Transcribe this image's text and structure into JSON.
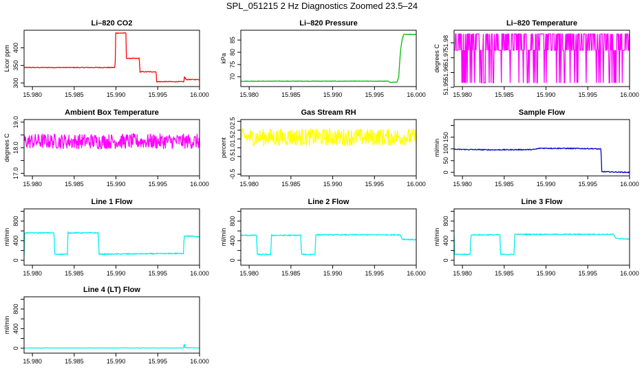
{
  "title": "SPL_051215  2 Hz Diagnostics Zoomed 23.5–24",
  "chart_data": [
    {
      "type": "line",
      "title": "Li–820 CO2",
      "ylabel": "Licor ppm",
      "color": "#ff0000",
      "xlim": [
        15.979,
        16.0
      ],
      "ylim": [
        290,
        450
      ],
      "xticks": [
        15.98,
        15.985,
        15.99,
        15.995,
        16.0
      ],
      "xticklabels": [
        "15.980",
        "15.985",
        "15.990",
        "15.995",
        "16.000"
      ],
      "yticks": [
        300,
        350,
        400
      ],
      "yticklabels": [
        "300",
        "350",
        "400"
      ],
      "noise": 1,
      "x": [
        15.979,
        15.9899,
        15.98995,
        15.9912,
        15.99125,
        15.9928,
        15.99285,
        15.9948,
        15.99485,
        15.99815,
        15.9982,
        15.9983,
        15.9985,
        16.0
      ],
      "y": [
        344,
        344,
        442,
        442,
        370,
        370,
        332,
        332,
        304,
        304,
        320,
        312,
        310,
        310
      ]
    },
    {
      "type": "line",
      "title": "Li–820 Pressure",
      "ylabel": "kPa",
      "color": "#00bb00",
      "xlim": [
        15.979,
        16.0
      ],
      "ylim": [
        66,
        89
      ],
      "xticks": [
        15.98,
        15.985,
        15.99,
        15.995,
        16.0
      ],
      "xticklabels": [
        "15.980",
        "15.985",
        "15.990",
        "15.995",
        "16.000"
      ],
      "yticks": [
        70,
        75,
        80,
        85
      ],
      "yticklabels": [
        "70",
        "75",
        "80",
        "85"
      ],
      "noise": 0.1,
      "x": [
        15.979,
        15.9967,
        15.99675,
        15.9977,
        15.9979,
        15.9981,
        15.9983,
        15.9985,
        16.0
      ],
      "y": [
        68.2,
        68.2,
        67.8,
        67.8,
        70,
        80,
        85,
        87.3,
        87.3
      ]
    },
    {
      "type": "line",
      "title": "Li–820 Temperature",
      "ylabel": "degrees C",
      "color": "#ff00ff",
      "xlim": [
        15.979,
        16.0
      ],
      "ylim": [
        51.9505,
        51.9885
      ],
      "xticks": [
        15.98,
        15.985,
        15.99,
        15.995,
        16.0
      ],
      "xticklabels": [
        "15.980",
        "15.985",
        "15.990",
        "15.995",
        "16.000"
      ],
      "yticks": [
        51.95,
        51.96,
        51.97,
        51.98
      ],
      "yticklabels": [
        "51.95",
        "51.96",
        "51.97",
        "51.98"
      ],
      "noise": 0,
      "x": [
        15.979,
        16.0
      ],
      "y": [
        51.986,
        51.986
      ],
      "levels": [
        51.953,
        51.975,
        51.986
      ]
    },
    {
      "type": "line",
      "title": "Ambient Box Temperature",
      "ylabel": "degrees C",
      "color": "#ff00ff",
      "xlim": [
        15.979,
        16.0
      ],
      "ylim": [
        16.9,
        19.1
      ],
      "xticks": [
        15.98,
        15.985,
        15.99,
        15.995,
        16.0
      ],
      "xticklabels": [
        "15.980",
        "15.985",
        "15.990",
        "15.995",
        "16.000"
      ],
      "yticks": [
        17.0,
        17.5,
        18.0,
        18.5,
        19.0
      ],
      "yticklabels": [
        "17.0",
        "",
        "18.0",
        "",
        "19.0"
      ],
      "noise": 0.3,
      "x": [
        15.979,
        16.0
      ],
      "y": [
        18.25,
        18.25
      ]
    },
    {
      "type": "line",
      "title": "Gas Stream RH",
      "ylabel": "percent",
      "color": "#ffff00",
      "xlim": [
        15.979,
        16.0
      ],
      "ylim": [
        -0.6,
        2.6
      ],
      "xticks": [
        15.98,
        15.985,
        15.99,
        15.995,
        16.0
      ],
      "xticklabels": [
        "15.980",
        "15.985",
        "15.990",
        "15.995",
        "16.000"
      ],
      "yticks": [
        -0.5,
        0.5,
        1.0,
        1.5,
        2.0,
        2.5
      ],
      "yticklabels": [
        "-0.5",
        "0.5",
        "1.0",
        "1.5",
        "2.0",
        "2.5"
      ],
      "noise": 0.5,
      "x": [
        15.979,
        16.0
      ],
      "y": [
        1.6,
        1.6
      ]
    },
    {
      "type": "line",
      "title": "Sample Flow",
      "ylabel": "ml/min",
      "color": "#0000cc",
      "xlim": [
        15.979,
        16.0
      ],
      "ylim": [
        -15,
        225
      ],
      "xticks": [
        15.98,
        15.985,
        15.99,
        15.995,
        16.0
      ],
      "xticklabels": [
        "15.980",
        "15.985",
        "15.990",
        "15.995",
        "16.000"
      ],
      "yticks": [
        0,
        50,
        100,
        150,
        200
      ],
      "yticklabels": [
        "0",
        "50",
        "100",
        "150",
        ""
      ],
      "noise": 2,
      "x": [
        15.979,
        15.9835,
        15.9885,
        15.9893,
        15.9955,
        15.9966,
        15.99665,
        16.0
      ],
      "y": [
        98,
        96,
        97,
        103,
        101,
        99,
        3,
        0
      ]
    },
    {
      "type": "line",
      "title": "Line 1 Flow",
      "ylabel": "ml/min",
      "color": "#00eeee",
      "xlim": [
        15.979,
        16.0
      ],
      "ylim": [
        -100,
        1050
      ],
      "xticks": [
        15.98,
        15.985,
        15.99,
        15.995,
        16.0
      ],
      "xticklabels": [
        "15.980",
        "15.985",
        "15.990",
        "15.995",
        "16.000"
      ],
      "yticks": [
        0,
        200,
        400,
        600,
        800,
        1000
      ],
      "yticklabels": [
        "0",
        "",
        "400",
        "",
        "800",
        ""
      ],
      "noise": 10,
      "x": [
        15.979,
        15.97902,
        15.9826,
        15.98265,
        15.9842,
        15.98425,
        15.9879,
        15.98795,
        15.9981,
        15.99815,
        16.0
      ],
      "y": [
        120,
        560,
        560,
        125,
        125,
        560,
        560,
        125,
        140,
        500,
        480
      ]
    },
    {
      "type": "line",
      "title": "Line 2 Flow",
      "ylabel": "ml/min",
      "color": "#00eeee",
      "xlim": [
        15.979,
        16.0
      ],
      "ylim": [
        -100,
        1050
      ],
      "xticks": [
        15.98,
        15.985,
        15.99,
        15.995,
        16.0
      ],
      "xticklabels": [
        "15.980",
        "15.985",
        "15.990",
        "15.995",
        "16.000"
      ],
      "yticks": [
        0,
        200,
        400,
        600,
        800,
        1000
      ],
      "yticklabels": [
        "0",
        "",
        "400",
        "",
        "800",
        ""
      ],
      "noise": 10,
      "x": [
        15.979,
        15.9809,
        15.98095,
        15.9826,
        15.98265,
        15.9862,
        15.98625,
        15.9879,
        15.98795,
        15.9981,
        15.9983,
        16.0
      ],
      "y": [
        510,
        510,
        120,
        120,
        510,
        510,
        120,
        120,
        520,
        520,
        430,
        420
      ]
    },
    {
      "type": "line",
      "title": "Line 3 Flow",
      "ylabel": "ml/min",
      "color": "#00eeee",
      "xlim": [
        15.979,
        16.0
      ],
      "ylim": [
        -100,
        1050
      ],
      "xticks": [
        15.98,
        15.985,
        15.99,
        15.995,
        16.0
      ],
      "xticklabels": [
        "15.980",
        "15.985",
        "15.990",
        "15.995",
        "16.000"
      ],
      "yticks": [
        0,
        200,
        400,
        600,
        800,
        1000
      ],
      "yticklabels": [
        "0",
        "",
        "400",
        "",
        "800",
        ""
      ],
      "noise": 10,
      "x": [
        15.979,
        15.97905,
        15.9795,
        15.98095,
        15.981,
        15.9845,
        15.98455,
        15.9862,
        15.98625,
        15.9981,
        15.9983,
        16.0
      ],
      "y": [
        500,
        120,
        120,
        120,
        520,
        520,
        120,
        120,
        530,
        530,
        450,
        430
      ]
    },
    {
      "type": "line",
      "title": "Line 4 (LT) Flow",
      "ylabel": "ml/min",
      "color": "#00eeee",
      "xlim": [
        15.979,
        16.0
      ],
      "ylim": [
        -100,
        1050
      ],
      "xticks": [
        15.98,
        15.985,
        15.99,
        15.995,
        16.0
      ],
      "xticklabels": [
        "15.980",
        "15.985",
        "15.990",
        "15.995",
        "16.000"
      ],
      "yticks": [
        0,
        200,
        400,
        600,
        800,
        1000
      ],
      "yticklabels": [
        "0",
        "",
        "400",
        "",
        "800",
        ""
      ],
      "noise": 3,
      "x": [
        15.979,
        15.9981,
        15.99815,
        15.9982,
        15.99825,
        16.0
      ],
      "y": [
        5,
        5,
        80,
        90,
        10,
        5
      ]
    }
  ]
}
